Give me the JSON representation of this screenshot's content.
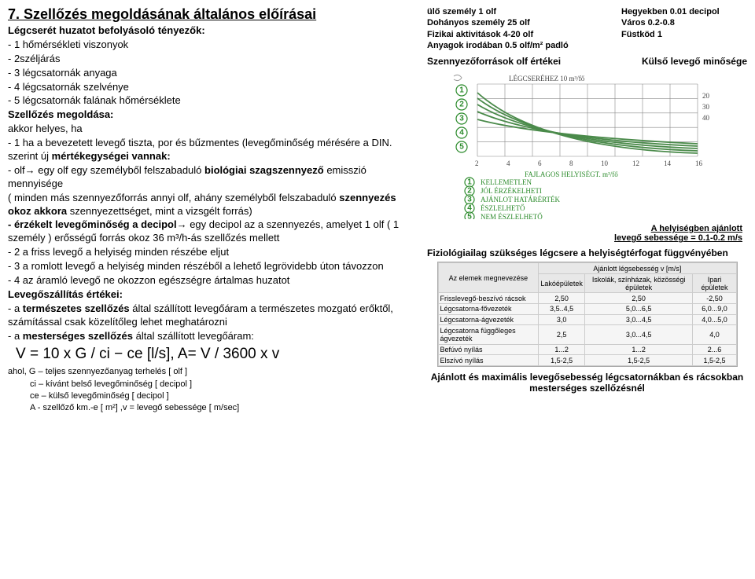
{
  "left": {
    "title": "7. Szellőzés megoldásának általános előírásai",
    "l1": "Légcserét huzatot befolyásoló tényezők:",
    "b1": "- 1 hőmérsékleti viszonyok",
    "b2": "- 2széljárás",
    "b3": "- 3 légcsatornák anyaga",
    "b4": "- 4 légcsatornák szelvénye",
    "b5": "- 5 légcsatornák falának hőmérséklete",
    "sm_t": "Szellőzés megoldása:",
    "sm1": "akkor helyes, ha",
    "sm2_a": "- 1 ha a bevezetett levegő tiszta, por és bűzmentes (levegőminőség mérésére a DIN. szerint új ",
    "sm2_b": "mértékegységei vannak:",
    "olf1_a": "- olf→ egy olf egy személyből felszabaduló ",
    "olf1_b": "biológiai szagszennyező",
    "olf1_c": " emisszió mennyisége",
    "olf2_a": "( minden más szennyezőforrás annyi olf, ahány személyből felszabaduló ",
    "olf2_b": "szennyezés okoz akkora",
    "olf2_c": " szennyezettséget, mint a vizsgélt forrás)",
    "dp_a": "- érzékelt levegőminőség a decipol→",
    "dp_b": " egy decipol az a szennyezés, amelyet 1 olf ( 1 személy ) erősségű forrás okoz 36 m³/h-ás szellőzés mellett",
    "p2": "- 2 a friss levegő a helyiség minden részébe eljut",
    "p3": "- 3 a romlott levegő a helyiség minden részéből a lehető legrövidebb úton távozzon",
    "p4": "- 4 az áramló levegő ne okozzon egészségre ártalmas huzatot",
    "lev_t": "Levegőszállítás értékei:",
    "lev1_a": "- a ",
    "lev1_b": "természetes szellőzés",
    "lev1_c": " által szállított levegőáram a természetes mozgató erőktől, számítással csak közelítőleg lehet meghatározni",
    "lev2_a": "- a ",
    "lev2_b": "mesterséges szellőzés",
    "lev2_c": " által szállított levegőáram:",
    "formula": "V = 10 x G / ci − ce [l/s], A= V / 3600 x v",
    "ahol": "ahol, G – teljes szennyezőanyag terhelés [ olf ]",
    "ci": "ci – kívánt belső levegőminőség [ decipol ]",
    "ce": "ce – külső levegőminőség [ decipol ]",
    "A": "A  - szellőző km.-e [ m²] ,v = levegő sebessége [ m/sec]"
  },
  "right": {
    "top_left": {
      "l1": "ülő személy 1 olf",
      "l2": "Dohányos személy 25 olf",
      "l3": "Fizikai aktivitások 4-20 olf",
      "l4": "Anyagok irodában 0.5 olf/m² padló"
    },
    "top_right": {
      "l1": "Hegyekben 0.01 decipol",
      "l2": "Város 0.2-0.8",
      "l3": "Füstköd 1"
    },
    "src_l": "Szennyezőforrások olf értékei",
    "src_r": "Külső levegő minősége",
    "chart": {
      "ylabel": "LÉGCSERÉHEZ 10 m³/fő",
      "yvals": [
        "20",
        "30",
        "40"
      ],
      "xticks": [
        "2",
        "4",
        "6",
        "8",
        "10",
        "12",
        "14",
        "16"
      ],
      "xlabel": "FAJLAGOS HELYISÉGT.  m³/fő",
      "curves": [
        1,
        2,
        3,
        4,
        5
      ],
      "legend": [
        "KELLEMETLEN",
        "JÓL ÉRZÉKELHETI",
        "AJÁNLOT HATÁRÉRTÉK",
        "ÉSZLELHETŐ",
        "NEM ÉSZLELHETŐ"
      ],
      "curve_color": "#4a8a4a",
      "grid_color": "#888"
    },
    "rec_a": "A  helyiségben ajánlott",
    "rec_b": "levegő sebessége = 0.1-0.2 m/s",
    "sec1": "Fiziológiailag szükséges légcsere a helyiségtérfogat függvényében",
    "table": {
      "head": [
        "Az elemek megnevezése",
        "Lakóépületek",
        "Iskolák, színházak, közösségi épületek",
        "Ipari épületek"
      ],
      "superhead": "Ajánlott légsebesség v [m/s]",
      "rows": [
        [
          "Frisslevegő-beszívó rácsok",
          "2,50",
          "2,50",
          "-2,50"
        ],
        [
          "Légcsatorna-fővezeték",
          "3,5..4,5",
          "5,0...6,5",
          "6,0...9,0"
        ],
        [
          "Légcsatorna-ágvezeték",
          "3,0",
          "3,0...4,5",
          "4,0...5,0"
        ],
        [
          "Légcsatorna függőleges ágvezeték",
          "2,5",
          "3,0...4,5",
          "4,0"
        ],
        [
          "Befúvó nyílás",
          "1...2",
          "1...2",
          "2...6"
        ],
        [
          "Elszívó nyílás",
          "1,5-2,5",
          "1,5-2,5",
          "1,5-2,5"
        ]
      ]
    },
    "bottom": "Ajánlott és maximális levegősebesség légcsatornákban és rácsokban mesterséges szellőzésnél"
  }
}
